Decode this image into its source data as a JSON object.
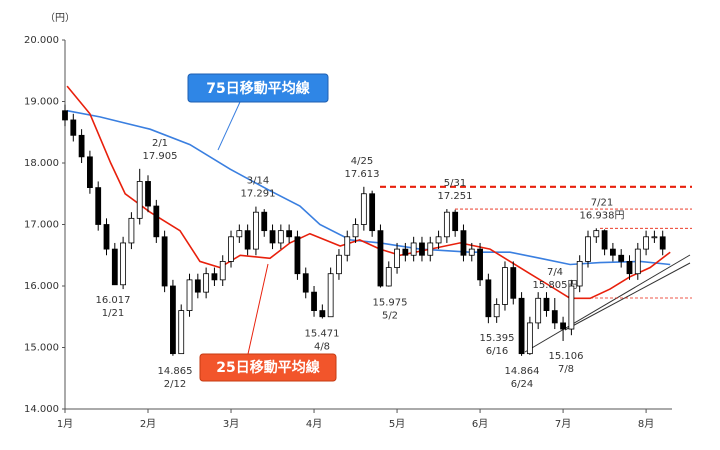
{
  "chart_data": {
    "type": "candlestick",
    "y_label": "（円）",
    "xlim": [
      0,
      146
    ],
    "xticks": [
      {
        "value": 0,
        "label": "1月"
      },
      {
        "value": 20,
        "label": "2月"
      },
      {
        "value": 40,
        "label": "3月"
      },
      {
        "value": 60,
        "label": "4月"
      },
      {
        "value": 80,
        "label": "5月"
      },
      {
        "value": 100,
        "label": "6月"
      },
      {
        "value": 120,
        "label": "7月"
      },
      {
        "value": 140,
        "label": "8月"
      }
    ],
    "ylim": [
      14000,
      20000
    ],
    "yticks": [
      {
        "value": 14000,
        "label": "14.000"
      },
      {
        "value": 15000,
        "label": "15.000"
      },
      {
        "value": 16000,
        "label": "16.000"
      },
      {
        "value": 17000,
        "label": "17.000"
      },
      {
        "value": 18000,
        "label": "18.000"
      },
      {
        "value": 19000,
        "label": "19.000"
      },
      {
        "value": 20000,
        "label": "20.000"
      }
    ],
    "x": [
      0,
      2,
      4,
      6,
      8,
      10,
      12,
      14,
      16,
      18,
      20,
      22,
      24,
      26,
      28,
      30,
      32,
      34,
      36,
      38,
      40,
      42,
      44,
      46,
      48,
      50,
      52,
      54,
      56,
      58,
      60,
      62,
      64,
      66,
      68,
      70,
      72,
      74,
      76,
      78,
      80,
      82,
      84,
      86,
      88,
      90,
      92,
      94,
      96,
      98,
      100,
      102,
      104,
      106,
      108,
      110,
      112,
      114,
      116,
      118,
      120,
      122,
      124,
      126,
      128,
      130,
      132,
      134,
      136,
      138,
      140,
      142,
      144
    ],
    "open": [
      18850,
      18700,
      18450,
      18100,
      17600,
      17000,
      16600,
      16020,
      16700,
      17100,
      17700,
      17300,
      16800,
      16000,
      14900,
      15600,
      16100,
      15900,
      16200,
      16100,
      16400,
      16800,
      16900,
      16600,
      17200,
      16900,
      16700,
      16900,
      16800,
      16200,
      15900,
      15600,
      15500,
      16200,
      16500,
      16800,
      17000,
      17500,
      16900,
      16000,
      16300,
      16600,
      16500,
      16700,
      16500,
      16700,
      16800,
      17200,
      16900,
      16500,
      16600,
      16100,
      15500,
      15700,
      16300,
      15800,
      14900,
      15400,
      15800,
      15600,
      15400,
      15300,
      16000,
      16400,
      16800,
      16900,
      16600,
      16500,
      16400,
      16200,
      16600,
      16800,
      16800
    ],
    "high": [
      18950,
      18800,
      18550,
      18200,
      17700,
      17100,
      16700,
      16800,
      17200,
      17905,
      17800,
      17400,
      16900,
      16100,
      15700,
      16200,
      16200,
      16300,
      16300,
      16500,
      16900,
      17000,
      17000,
      17291,
      17250,
      17000,
      17000,
      17000,
      16900,
      16300,
      16000,
      15700,
      16300,
      16600,
      16900,
      17100,
      17613,
      17550,
      17000,
      16400,
      16700,
      16700,
      16800,
      16800,
      16800,
      16900,
      17251,
      17240,
      17000,
      16700,
      16700,
      16200,
      15800,
      16400,
      16400,
      15900,
      15500,
      15900,
      15900,
      15805,
      15500,
      16100,
      16500,
      16900,
      16938,
      16920,
      16700,
      16600,
      16500,
      16700,
      16900,
      16900,
      16900
    ],
    "low": [
      18600,
      18350,
      18000,
      17500,
      16900,
      16500,
      16017,
      15950,
      16600,
      17000,
      17200,
      16700,
      15900,
      14865,
      14950,
      15500,
      15800,
      15800,
      16000,
      16000,
      16300,
      16700,
      16500,
      16500,
      16800,
      16600,
      16600,
      16700,
      16100,
      15800,
      15500,
      15471,
      15500,
      16100,
      16400,
      16700,
      16900,
      16800,
      15975,
      15990,
      16200,
      16400,
      16400,
      16400,
      16400,
      16600,
      16700,
      16800,
      16400,
      16400,
      16000,
      15395,
      15400,
      15600,
      15700,
      14864,
      14880,
      15300,
      15500,
      15300,
      15106,
      15200,
      15900,
      16300,
      16700,
      16500,
      16400,
      16300,
      16100,
      16100,
      16500,
      16700,
      16500
    ],
    "close": [
      18700,
      18450,
      18100,
      17600,
      17000,
      16600,
      16020,
      16700,
      17100,
      17700,
      17300,
      16800,
      16000,
      14900,
      15600,
      16100,
      15900,
      16200,
      16100,
      16400,
      16800,
      16900,
      16600,
      17200,
      16900,
      16700,
      16900,
      16800,
      16200,
      15900,
      15600,
      15500,
      16200,
      16500,
      16800,
      17000,
      17500,
      16900,
      16000,
      16300,
      16600,
      16500,
      16700,
      16500,
      16700,
      16800,
      17200,
      16900,
      16500,
      16600,
      16100,
      15500,
      15700,
      16300,
      15800,
      14900,
      15400,
      15800,
      15600,
      15400,
      15300,
      16000,
      16400,
      16800,
      16900,
      16600,
      16500,
      16400,
      16200,
      16600,
      16800,
      16800,
      16600
    ],
    "up_color": "#ffffff",
    "down_color": "#000000",
    "lines": [
      {
        "name": "75日移動平均線",
        "color": "#3a7fe0",
        "x": [
          0.5,
          8.4,
          20.5,
          30.1,
          39.8,
          49.4,
          56.6,
          61.4,
          68.7,
          75.9,
          85.5,
          97.6,
          107.2,
          114.5,
          121.7,
          128.9,
          138.6,
          145.8
        ],
        "values": [
          18850,
          18750,
          18550,
          18300,
          17900,
          17550,
          17300,
          17000,
          16750,
          16700,
          16600,
          16550,
          16550,
          16450,
          16350,
          16380,
          16400,
          16350
        ]
      },
      {
        "name": "25日移動平均線",
        "color": "#e8200c",
        "x": [
          0.5,
          6,
          11,
          14.5,
          20.5,
          27.7,
          32.5,
          37.3,
          42.2,
          49.4,
          54.2,
          59,
          66.3,
          71,
          75.9,
          80.7,
          88,
          95.2,
          102.4,
          107.2,
          112,
          116.9,
          121.7,
          126.5,
          131.3,
          136.1,
          141,
          145.8
        ],
        "values": [
          19250,
          18800,
          18000,
          17500,
          17200,
          16900,
          16400,
          16300,
          16500,
          16450,
          16700,
          16850,
          16650,
          16750,
          16600,
          16500,
          16600,
          16700,
          16600,
          16400,
          16200,
          16000,
          15800,
          15800,
          15950,
          16150,
          16300,
          16550
        ]
      }
    ],
    "annotations": [
      {
        "date": "2/1",
        "value": 17905,
        "value_label": "17.905"
      },
      {
        "date": "3/14",
        "value": 17291,
        "value_label": "17.291"
      },
      {
        "date": "4/25",
        "value": 17613,
        "value_label": "17.613"
      },
      {
        "date": "5/31",
        "value": 17251,
        "value_label": "17.251"
      },
      {
        "date": "7/21",
        "value": 16938,
        "value_label": "16.938円"
      },
      {
        "date": "1/21",
        "value": 16017,
        "value_label": "16.017"
      },
      {
        "date": "2/12",
        "value": 14865,
        "value_label": "14.865"
      },
      {
        "date": "4/8",
        "value": 15471,
        "value_label": "15.471"
      },
      {
        "date": "5/2",
        "value": 15975,
        "value_label": "15.975"
      },
      {
        "date": "6/16",
        "value": 15395,
        "value_label": "15.395"
      },
      {
        "date": "6/24",
        "value": 14864,
        "value_label": "14.864"
      },
      {
        "date": "7/4",
        "value": 15805,
        "value_label": "15.805円"
      },
      {
        "date": "7/8",
        "value": 15106,
        "value_label": "15.106"
      }
    ]
  }
}
